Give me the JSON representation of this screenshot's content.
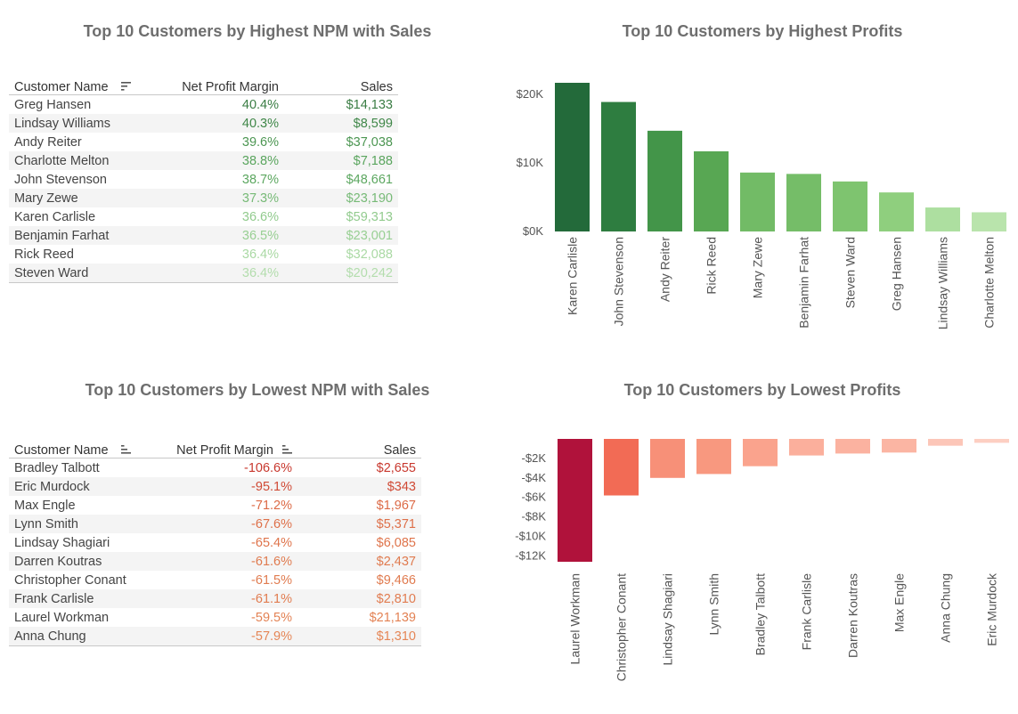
{
  "panels": {
    "highest_npm": {
      "title": "Top 10 Customers by Highest NPM with Sales",
      "columns": [
        "Customer Name",
        "Net Profit Margin",
        "Sales"
      ],
      "sort_icons": {
        "customer": "sort-descending-icon"
      },
      "rows": [
        {
          "name": "Greg Hansen",
          "npm": "40.4%",
          "sales": "$14,133",
          "color": "#3a7d44"
        },
        {
          "name": "Lindsay Williams",
          "npm": "40.3%",
          "sales": "$8,599",
          "color": "#3f8748"
        },
        {
          "name": "Andy Reiter",
          "npm": "39.6%",
          "sales": "$37,038",
          "color": "#4c9652"
        },
        {
          "name": "Charlotte Melton",
          "npm": "38.8%",
          "sales": "$7,188",
          "color": "#5aa55e"
        },
        {
          "name": "John Stevenson",
          "npm": "38.7%",
          "sales": "$48,661",
          "color": "#5ca760"
        },
        {
          "name": "Mary Zewe",
          "npm": "37.3%",
          "sales": "$23,190",
          "color": "#77ba77"
        },
        {
          "name": "Karen Carlisle",
          "npm": "36.6%",
          "sales": "$59,313",
          "color": "#92cb8e"
        },
        {
          "name": "Benjamin Farhat",
          "npm": "36.5%",
          "sales": "$23,001",
          "color": "#98cf93"
        },
        {
          "name": "Rick Reed",
          "npm": "36.4%",
          "sales": "$32,088",
          "color": "#aad9a4"
        },
        {
          "name": "Steven Ward",
          "npm": "36.4%",
          "sales": "$20,242",
          "color": "#b3ddad"
        }
      ]
    },
    "lowest_npm": {
      "title": "Top 10 Customers by Lowest NPM with Sales",
      "columns": [
        "Customer Name",
        "Net Profit Margin",
        "Sales"
      ],
      "sort_icons": {
        "customer": "sort-ascending-icon",
        "npm": "sort-ascending-icon"
      },
      "rows": [
        {
          "name": "Bradley Talbott",
          "npm": "-106.6%",
          "sales": "$2,655",
          "color": "#c8382e"
        },
        {
          "name": "Eric Murdock",
          "npm": "-95.1%",
          "sales": "$343",
          "color": "#d04a35"
        },
        {
          "name": "Max Engle",
          "npm": "-71.2%",
          "sales": "$1,967",
          "color": "#dc6a46"
        },
        {
          "name": "Lynn Smith",
          "npm": "-67.6%",
          "sales": "$5,371",
          "color": "#de7049"
        },
        {
          "name": "Lindsay Shagiari",
          "npm": "-65.4%",
          "sales": "$6,085",
          "color": "#df744b"
        },
        {
          "name": "Darren Koutras",
          "npm": "-61.6%",
          "sales": "$2,437",
          "color": "#e07b4f"
        },
        {
          "name": "Christopher Conant",
          "npm": "-61.5%",
          "sales": "$9,466",
          "color": "#e07b4f"
        },
        {
          "name": "Frank Carlisle",
          "npm": "-61.1%",
          "sales": "$2,810",
          "color": "#e17c50"
        },
        {
          "name": "Laurel Workman",
          "npm": "-59.5%",
          "sales": "$21,139",
          "color": "#e38254"
        },
        {
          "name": "Anna Chung",
          "npm": "-57.9%",
          "sales": "$1,310",
          "color": "#e58656"
        }
      ]
    }
  },
  "chart_data": [
    {
      "type": "bar",
      "title": "Top 10 Customers by Highest Profits",
      "xlabel": "",
      "ylabel": "",
      "categories": [
        "Karen Carlisle",
        "John Stevenson",
        "Andy Reiter",
        "Rick Reed",
        "Mary Zewe",
        "Benjamin Farhat",
        "Steven Ward",
        "Greg Hansen",
        "Lindsay Williams",
        "Charlotte Melton"
      ],
      "values": [
        21700,
        18900,
        14700,
        11700,
        8600,
        8400,
        7300,
        5700,
        3500,
        2800
      ],
      "colors": [
        "#236a3a",
        "#2e7d40",
        "#439549",
        "#58a753",
        "#72bb66",
        "#75bd68",
        "#7ec46f",
        "#8fcf7e",
        "#addfa0",
        "#b9e4ac"
      ],
      "yticks": [
        0,
        10000,
        20000
      ],
      "ytick_labels": [
        "$0K",
        "$10K",
        "$20K"
      ],
      "ylim": [
        0,
        21700
      ],
      "grid": false
    },
    {
      "type": "bar",
      "title": "Top 10 Customers by Lowest Profits",
      "xlabel": "",
      "ylabel": "",
      "categories": [
        "Laurel Workman",
        "Christopher Conant",
        "Lindsay Shagiari",
        "Lynn Smith",
        "Bradley Talbott",
        "Frank Carlisle",
        "Darren Koutras",
        "Max Engle",
        "Anna Chung",
        "Eric Murdock"
      ],
      "values": [
        -12600,
        -5800,
        -4000,
        -3600,
        -2800,
        -1700,
        -1500,
        -1400,
        -700,
        -400
      ],
      "colors": [
        "#b0123b",
        "#f26b55",
        "#f79078",
        "#f8987f",
        "#faa38d",
        "#fbaf9c",
        "#fbb2a0",
        "#fbb5a3",
        "#fcc6b8",
        "#fdcfc2"
      ],
      "yticks": [
        -2000,
        -4000,
        -6000,
        -8000,
        -10000,
        -12000
      ],
      "ytick_labels": [
        "-$2K",
        "-$4K",
        "-$6K",
        "-$8K",
        "-$10K",
        "-$12K"
      ],
      "ylim": [
        -12600,
        0
      ],
      "grid": false
    }
  ]
}
